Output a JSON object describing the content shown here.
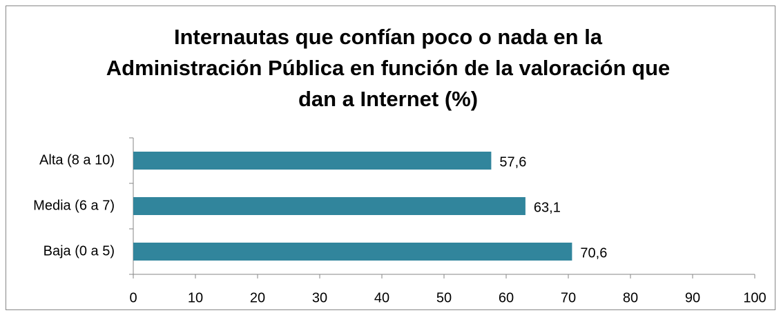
{
  "chart_data": {
    "type": "hbar",
    "title": [
      "Internautas que confían poco o nada en la",
      "Administración Pública en función de la valoración que",
      "dan a Internet (%)"
    ],
    "categories": [
      "Alta (8 a 10)",
      "Media (6 a 7)",
      "Baja (0 a 5)"
    ],
    "values": [
      57.6,
      63.1,
      70.6
    ],
    "value_labels": [
      "57,6",
      "63,1",
      "70,6"
    ],
    "color": "#31859c",
    "xlim": [
      0,
      100
    ],
    "xticks": [
      0,
      10,
      20,
      30,
      40,
      50,
      60,
      70,
      80,
      90,
      100
    ]
  }
}
